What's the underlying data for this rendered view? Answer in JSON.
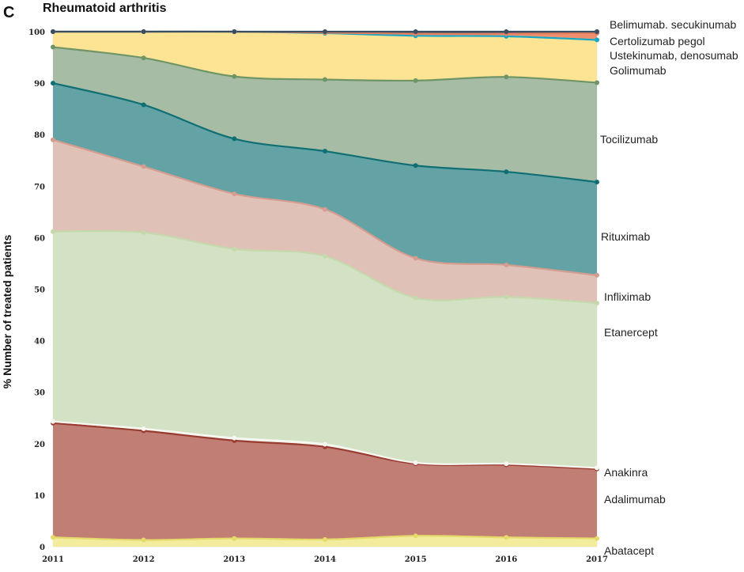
{
  "chart_data": {
    "type": "area",
    "panel_label": "C",
    "title": "Rheumatoid arthritis",
    "xlabel": "",
    "ylabel": "% Number of treated patients",
    "ylim": [
      0,
      100
    ],
    "yticks": [
      0,
      10,
      20,
      30,
      40,
      50,
      60,
      70,
      80,
      90,
      100
    ],
    "x": [
      "2011",
      "2012",
      "2013",
      "2014",
      "2015",
      "2016",
      "2017"
    ],
    "stacked_cumulative_top": true,
    "series": [
      {
        "name": "Abatacept",
        "color": "#f2ec9c",
        "line": "#e5da6a",
        "values": [
          1.8,
          1.3,
          1.6,
          1.4,
          2.1,
          1.8,
          1.6
        ]
      },
      {
        "name": "Adalimumab",
        "color": "#c07e74",
        "line": "#9a3b30",
        "values": [
          24.0,
          22.5,
          20.6,
          19.4,
          16.1,
          15.9,
          15.1
        ]
      },
      {
        "name": "Anakinra",
        "color": "#eef3ea",
        "line": "#f7f7f2",
        "values": [
          24.3,
          22.9,
          21.1,
          19.9,
          16.3,
          16.1,
          15.3
        ]
      },
      {
        "name": "Etanercept",
        "color": "#d3e2c5",
        "line": "#c5d9ad",
        "values": [
          61.2,
          61.0,
          57.8,
          56.4,
          48.3,
          48.5,
          47.3
        ]
      },
      {
        "name": "Infliximab",
        "color": "#dfc1b7",
        "line": "#d59d8f",
        "values": [
          79.0,
          73.8,
          68.5,
          65.5,
          56.0,
          54.7,
          52.7
        ]
      },
      {
        "name": "Rituximab",
        "color": "#64a3a5",
        "line": "#0f6f74",
        "values": [
          90.0,
          85.8,
          79.2,
          76.8,
          74.0,
          72.8,
          70.8
        ]
      },
      {
        "name": "Tocilizumab",
        "color": "#a6bca5",
        "line": "#6f9566",
        "values": [
          97.0,
          94.9,
          91.3,
          90.7,
          90.5,
          91.2,
          90.1
        ]
      },
      {
        "name": "Golimumab",
        "color": "#fde494",
        "line": "#fde494",
        "values": [
          100.0,
          100.0,
          100.0,
          99.7,
          99.2,
          99.1,
          98.4
        ]
      },
      {
        "name": "Ustekinumab, denosumab",
        "color": "#f6dd8a",
        "line": "#1aa7c5",
        "values": [
          100.0,
          100.0,
          100.0,
          99.7,
          99.2,
          99.1,
          98.4
        ]
      },
      {
        "name": "Certolizumab pegol",
        "color": "#f08f6e",
        "line": "#e37e5f",
        "values": [
          100.0,
          100.0,
          100.0,
          99.8,
          99.6,
          99.6,
          99.7
        ]
      },
      {
        "name": "Belimumab. secukinumab",
        "color": "#3f5568",
        "line": "#3a4e60",
        "values": [
          100.0,
          100.0,
          100.0,
          100.0,
          100.0,
          100.0,
          100.0
        ]
      }
    ],
    "series_labels": [
      "Belimumab. secukinumab",
      "Certolizumab pegol",
      "Ustekinumab, denosumab",
      "Golimumab",
      "Tocilizumab",
      "Rituximab",
      "Infliximab",
      "Etanercept",
      "Anakinra",
      "Adalimumab",
      "Abatacept"
    ],
    "grid": true,
    "legend": "right (inline labels)"
  }
}
